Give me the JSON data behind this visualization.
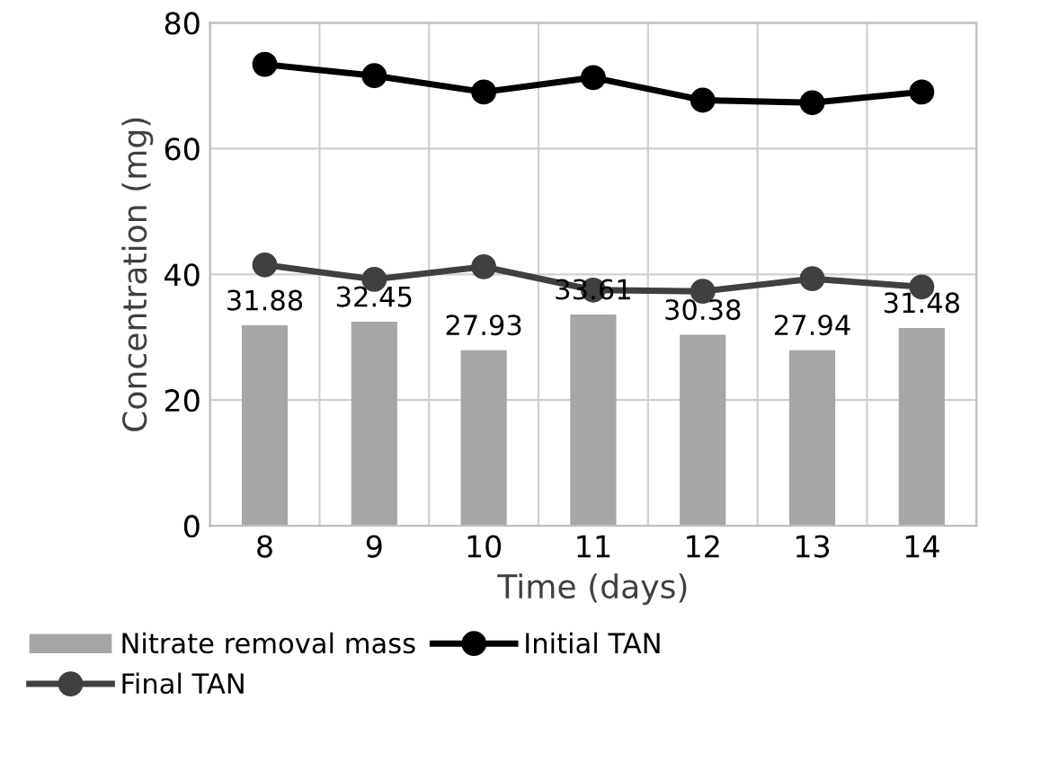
{
  "chart_data": {
    "type": "bar",
    "xlabel": "Time (days)",
    "ylabel": "Concentration (mg)",
    "categories": [
      "8",
      "9",
      "10",
      "11",
      "12",
      "13",
      "14"
    ],
    "series": [
      {
        "name": "Nitrate removal mass",
        "color": "#a6a6a6",
        "values": [
          31.88,
          32.45,
          27.93,
          33.61,
          30.38,
          27.94,
          31.48
        ],
        "data_labels": true
      },
      {
        "name": "Initial TAN",
        "type": "line",
        "color": "#000000",
        "values": [
          73.4,
          71.6,
          69.0,
          71.3,
          67.7,
          67.3,
          69.0
        ],
        "marker": "circle"
      },
      {
        "name": "Final TAN",
        "type": "line",
        "color": "#404040",
        "values": [
          41.5,
          39.2,
          41.2,
          37.5,
          37.3,
          39.3,
          38.0
        ],
        "marker": "circle"
      }
    ],
    "ylim": [
      0,
      80
    ],
    "yticks": [
      0,
      20,
      40,
      60,
      80
    ],
    "grid": true,
    "legend": "bottom"
  }
}
